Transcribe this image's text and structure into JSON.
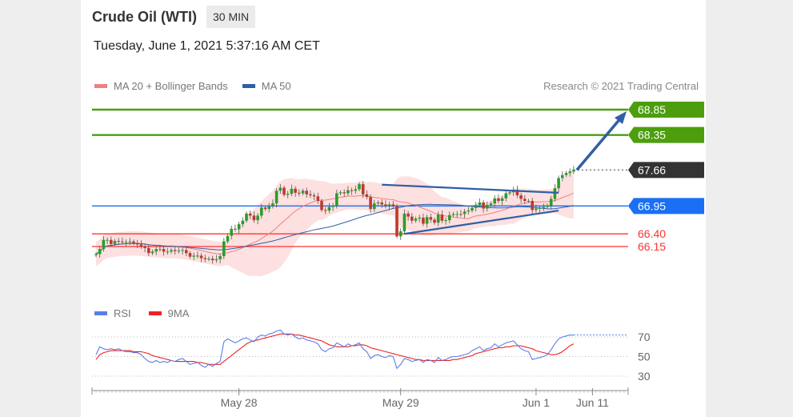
{
  "header": {
    "title": "Crude Oil (WTI)",
    "timeframe": "30 MIN",
    "datetime": "Tuesday, June 1, 2021 5:37:16 AM CET",
    "research": "Research © 2021 Trading Central"
  },
  "colors": {
    "resistance": "#4c9e0e",
    "pivot": "#1a6ff5",
    "support": "#ff3333",
    "last": "#333333",
    "ma20": "#f08080",
    "bollinger_fill": "#fde0e0",
    "ma50": "#2f5fa5",
    "rsi": "#5b7ee8",
    "rsi_ma": "#ee2222",
    "candle_up": "#2a9d2a",
    "candle_down": "#c0392b"
  },
  "chart_data": [
    {
      "type": "candlestick",
      "title": "Crude Oil (WTI)",
      "interval": "30 MIN",
      "legend": [
        "MA 20 + Bollinger Bands",
        "MA 50"
      ],
      "legend_position": "top-left",
      "grid": false,
      "x_ticks": [
        "May 28",
        "May 29",
        "Jun 1",
        "Jun 11"
      ],
      "ylim": [
        65.9,
        68.95
      ],
      "levels": [
        {
          "label": "68.85",
          "value": 68.85,
          "kind": "resistance"
        },
        {
          "label": "68.35",
          "value": 68.35,
          "kind": "resistance"
        },
        {
          "label": "67.66",
          "value": 67.66,
          "kind": "last"
        },
        {
          "label": "66.95",
          "value": 66.95,
          "kind": "pivot"
        },
        {
          "label": "66.40",
          "value": 66.4,
          "kind": "support"
        },
        {
          "label": "66.15",
          "value": 66.15,
          "kind": "support"
        }
      ],
      "closes": [
        66.0,
        66.1,
        66.28,
        66.28,
        66.2,
        66.26,
        66.25,
        66.24,
        66.24,
        66.25,
        66.22,
        66.19,
        66.15,
        66.12,
        66.02,
        66.05,
        66.1,
        66.1,
        66.05,
        66.05,
        66.08,
        66.06,
        66.07,
        66.08,
        66.02,
        65.95,
        65.97,
        65.97,
        65.92,
        65.9,
        65.91,
        65.88,
        65.9,
        65.96,
        66.25,
        66.36,
        66.5,
        66.49,
        66.59,
        66.66,
        66.8,
        66.76,
        66.67,
        66.76,
        66.92,
        66.89,
        66.95,
        67.0,
        67.25,
        67.31,
        67.17,
        67.19,
        67.29,
        67.21,
        67.2,
        67.25,
        67.18,
        67.16,
        67.14,
        67.05,
        66.87,
        66.86,
        66.93,
        66.96,
        67.2,
        67.22,
        67.2,
        67.26,
        67.25,
        67.28,
        67.38,
        67.18,
        67.13,
        66.89,
        67.0,
        67.02,
        66.98,
        66.95,
        66.98,
        66.95,
        66.35,
        66.45,
        66.8,
        66.74,
        66.66,
        66.7,
        66.72,
        66.6,
        66.73,
        66.68,
        66.62,
        66.78,
        66.66,
        66.67,
        66.77,
        66.79,
        66.79,
        66.79,
        66.84,
        66.86,
        66.91,
        66.97,
        67.02,
        66.9,
        66.97,
        67.0,
        67.1,
        67.05,
        67.1,
        67.2,
        67.22,
        67.27,
        67.16,
        67.09,
        67.05,
        67.05,
        66.87,
        66.9,
        66.91,
        66.93,
        66.96,
        67.09,
        67.3,
        67.5,
        67.56,
        67.6,
        67.63,
        67.66
      ],
      "x_index_of_ticks": [
        38,
        81,
        117,
        132
      ],
      "projection": {
        "from_value": 67.66,
        "to_value": 68.85
      },
      "triangle": {
        "upper": [
          {
            "i": 76,
            "v": 67.37
          },
          {
            "i": 123,
            "v": 67.21
          }
        ],
        "lower": [
          {
            "i": 82,
            "v": 66.4
          },
          {
            "i": 123,
            "v": 66.86
          }
        ]
      }
    },
    {
      "type": "line",
      "title": "RSI",
      "legend": [
        "RSI",
        "9MA"
      ],
      "legend_position": "top-left",
      "y_ticks": [
        70,
        50,
        30
      ],
      "ylim": [
        25,
        80
      ],
      "series": [
        {
          "name": "RSI",
          "values": [
            52,
            60,
            58,
            57,
            58,
            57,
            58,
            56,
            55,
            55,
            54,
            54,
            52,
            48,
            45,
            44,
            46,
            44,
            45,
            44,
            46,
            45,
            47,
            48,
            45,
            42,
            43,
            44,
            41,
            39,
            42,
            40,
            43,
            45,
            65,
            68,
            66,
            64,
            66,
            68,
            69,
            67,
            65,
            70,
            72,
            71,
            73,
            74,
            76,
            77,
            73,
            72,
            73,
            70,
            68,
            69,
            67,
            66,
            65,
            63,
            57,
            55,
            58,
            59,
            64,
            62,
            60,
            63,
            61,
            62,
            64,
            58,
            55,
            48,
            51,
            52,
            50,
            49,
            51,
            50,
            38,
            42,
            48,
            47,
            45,
            46,
            47,
            44,
            47,
            46,
            44,
            49,
            46,
            47,
            49,
            50,
            50,
            51,
            52,
            53,
            56,
            58,
            60,
            56,
            58,
            59,
            63,
            60,
            62,
            64,
            65,
            66,
            62,
            58,
            56,
            55,
            47,
            48,
            49,
            50,
            52,
            57,
            63,
            68,
            70,
            71,
            72,
            72
          ]
        },
        {
          "name": "9MA",
          "values": [
            47,
            52,
            54,
            55,
            56,
            56,
            56,
            56,
            56,
            56,
            55,
            55,
            55,
            54,
            53,
            51,
            50,
            49,
            48,
            47,
            46,
            45,
            45,
            45,
            45,
            45,
            45,
            44,
            44,
            43,
            42,
            42,
            42,
            42,
            45,
            48,
            51,
            54,
            57,
            60,
            63,
            65,
            66,
            67,
            68,
            69,
            70,
            71,
            72,
            73,
            73,
            73,
            73,
            72,
            72,
            71,
            70,
            69,
            68,
            67,
            66,
            64,
            62,
            61,
            60,
            60,
            60,
            60,
            61,
            61,
            62,
            62,
            61,
            59,
            58,
            57,
            56,
            55,
            54,
            53,
            52,
            51,
            50,
            49,
            48,
            47,
            47,
            46,
            46,
            46,
            46,
            46,
            46,
            46,
            46,
            47,
            47,
            48,
            49,
            50,
            51,
            53,
            54,
            55,
            56,
            57,
            58,
            59,
            59,
            60,
            60,
            61,
            61,
            61,
            60,
            59,
            58,
            56,
            55,
            54,
            53,
            52,
            52,
            53,
            55,
            58,
            61,
            63
          ]
        }
      ]
    }
  ]
}
